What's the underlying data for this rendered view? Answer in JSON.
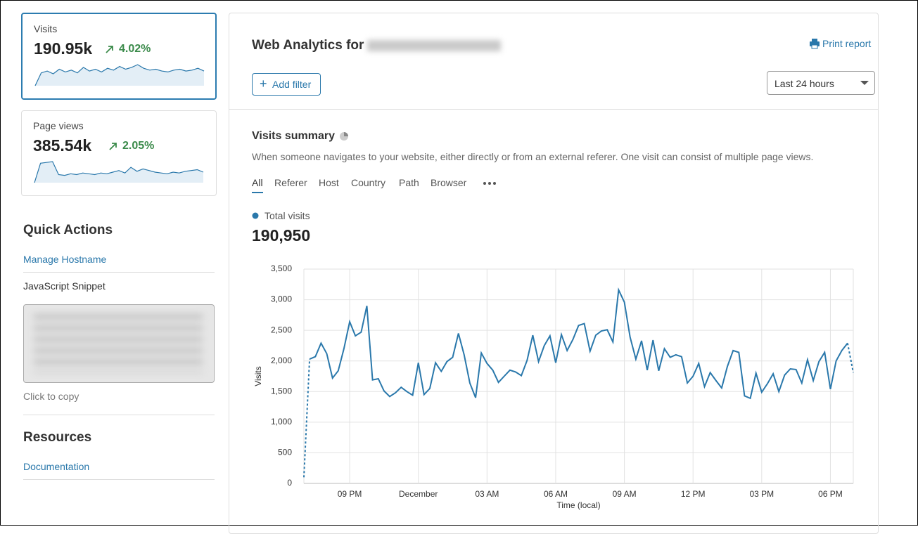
{
  "sidebar": {
    "cards": [
      {
        "label": "Visits",
        "value": "190.95k",
        "change": "4.02%",
        "sparkline": [
          4,
          18,
          20,
          17,
          22,
          19,
          21,
          18,
          24,
          20,
          22,
          19,
          23,
          21,
          25,
          22,
          24,
          27,
          23,
          21,
          22,
          20,
          19,
          21,
          22,
          20,
          21,
          23,
          20
        ]
      },
      {
        "label": "Page views",
        "value": "385.54k",
        "change": "2.05%",
        "sparkline": [
          4,
          28,
          29,
          30,
          14,
          13,
          15,
          14,
          16,
          15,
          14,
          16,
          15,
          17,
          19,
          16,
          23,
          18,
          21,
          19,
          17,
          16,
          15,
          17,
          16,
          18,
          19,
          20,
          17
        ]
      }
    ],
    "quick_actions": {
      "title": "Quick Actions",
      "links": [
        "Manage Hostname"
      ],
      "snippet_label": "JavaScript Snippet",
      "copy_hint": "Click to copy"
    },
    "resources": {
      "title": "Resources",
      "links": [
        "Documentation"
      ]
    }
  },
  "header": {
    "title": "Web Analytics for",
    "print": "Print report",
    "add_filter": "Add filter",
    "range": "Last 24 hours"
  },
  "summary": {
    "title": "Visits summary",
    "description": "When someone navigates to your website, either directly or from an external referer. One visit can consist of multiple page views.",
    "tabs": [
      "All",
      "Referer",
      "Host",
      "Country",
      "Path",
      "Browser"
    ],
    "total": "190,950"
  },
  "chart_data": {
    "type": "line",
    "x_label": "Time (local)",
    "y_label": "Visits",
    "grid": true,
    "dashed_ends": true,
    "categories": [
      null,
      null,
      null,
      null,
      null,
      null,
      null,
      null,
      "09 PM",
      null,
      null,
      null,
      null,
      null,
      null,
      null,
      null,
      null,
      null,
      null,
      "December",
      null,
      null,
      null,
      null,
      null,
      null,
      null,
      null,
      null,
      null,
      null,
      "03 AM",
      null,
      null,
      null,
      null,
      null,
      null,
      null,
      null,
      null,
      null,
      null,
      "06 AM",
      null,
      null,
      null,
      null,
      null,
      null,
      null,
      null,
      null,
      null,
      null,
      "09 AM",
      null,
      null,
      null,
      null,
      null,
      null,
      null,
      null,
      null,
      null,
      null,
      "12 PM",
      null,
      null,
      null,
      null,
      null,
      null,
      null,
      null,
      null,
      null,
      null,
      "03 PM",
      null,
      null,
      null,
      null,
      null,
      null,
      null,
      null,
      null,
      null,
      null,
      "06 PM",
      null,
      null,
      null,
      null
    ],
    "series": [
      {
        "name": "Total visits",
        "color": "#2a78ab",
        "values": [
          100,
          2030,
          2070,
          2290,
          2120,
          1720,
          1840,
          2200,
          2640,
          2410,
          2470,
          2900,
          1690,
          1710,
          1510,
          1420,
          1480,
          1570,
          1500,
          1440,
          1970,
          1450,
          1550,
          1970,
          1830,
          1990,
          2060,
          2450,
          2100,
          1640,
          1400,
          2130,
          1960,
          1850,
          1650,
          1750,
          1850,
          1820,
          1760,
          2010,
          2420,
          1990,
          2250,
          2410,
          1970,
          2430,
          2170,
          2350,
          2580,
          2610,
          2160,
          2420,
          2490,
          2510,
          2310,
          3160,
          2960,
          2390,
          2030,
          2330,
          1850,
          2340,
          1840,
          2200,
          2060,
          2100,
          2070,
          1640,
          1750,
          1960,
          1580,
          1810,
          1680,
          1560,
          1910,
          2170,
          2140,
          1430,
          1390,
          1800,
          1490,
          1630,
          1790,
          1500,
          1770,
          1870,
          1860,
          1640,
          2020,
          1680,
          1990,
          2140,
          1540,
          2000,
          2170,
          2290,
          1810
        ]
      }
    ],
    "ylim": [
      0,
      3500
    ],
    "yticks": [
      0,
      500,
      {
        "value": 1000,
        "label": "1,000"
      },
      {
        "value": 1500,
        "label": "1,500"
      },
      {
        "value": 2000,
        "label": "2,000"
      },
      {
        "value": 2500,
        "label": "2,500"
      },
      {
        "value": 3000,
        "label": "3,000"
      },
      {
        "value": 3500,
        "label": "3,500"
      }
    ]
  }
}
